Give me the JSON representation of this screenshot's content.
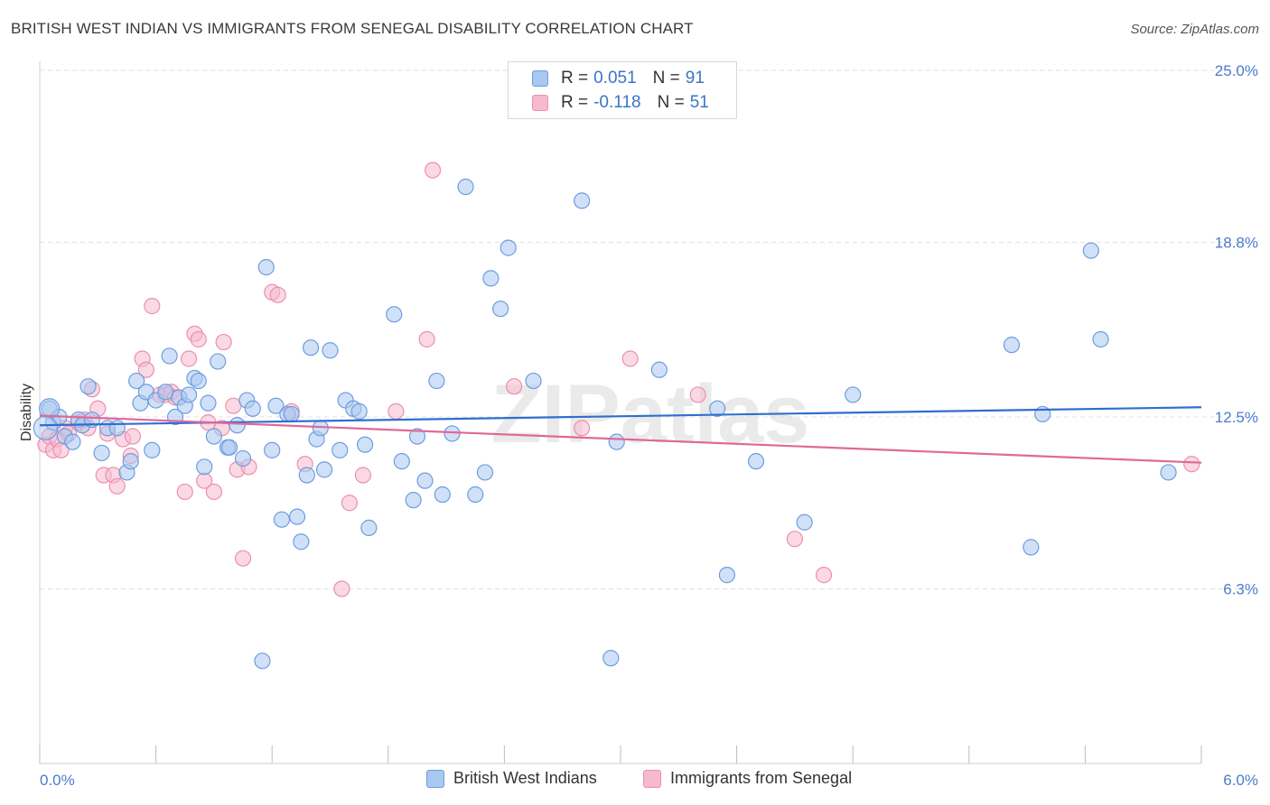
{
  "title": "BRITISH WEST INDIAN VS IMMIGRANTS FROM SENEGAL DISABILITY CORRELATION CHART",
  "source": "Source: ZipAtlas.com",
  "watermark": "ZIPatlas",
  "colors": {
    "blue_fill": "#a9c8f0",
    "blue_stroke": "#6d9de0",
    "blue_line": "#2f6fce",
    "pink_fill": "#f6b9cd",
    "pink_stroke": "#ec8fb0",
    "pink_line": "#e0689a",
    "tick_text": "#4a7cc9",
    "grid": "#e2e2e2"
  },
  "legend": {
    "rows": [
      {
        "r_label": "R = ",
        "r_value": "0.051",
        "n_label": "N = ",
        "n_value": "91"
      },
      {
        "r_label": "R = ",
        "r_value": "-0.118",
        "n_label": "N = ",
        "n_value": "51"
      }
    ]
  },
  "chart_data": {
    "type": "scatter",
    "title": "BRITISH WEST INDIAN VS IMMIGRANTS FROM SENEGAL DISABILITY CORRELATION CHART",
    "ylabel": "Disability",
    "xlabel": "",
    "xlim": [
      0.0,
      6.0
    ],
    "ylim": [
      0.0,
      25.0
    ],
    "x_tick_labels": [
      "0.0%",
      "6.0%"
    ],
    "y_ticks": [
      6.3,
      12.5,
      18.8,
      25.0
    ],
    "y_tick_labels": [
      "6.3%",
      "12.5%",
      "18.8%",
      "25.0%"
    ],
    "grid": true,
    "legend_position": "top-center",
    "series": [
      {
        "name": "British West Indians",
        "color": "#a9c8f0",
        "r": 0.051,
        "n": 91,
        "trend": [
          [
            0.0,
            12.2
          ],
          [
            6.0,
            12.85
          ]
        ],
        "points": [
          [
            0.05,
            12.8
          ],
          [
            0.07,
            12.3
          ],
          [
            0.1,
            12.5
          ],
          [
            0.13,
            11.8
          ],
          [
            0.17,
            11.6
          ],
          [
            0.2,
            12.4
          ],
          [
            0.22,
            12.2
          ],
          [
            0.25,
            13.6
          ],
          [
            0.27,
            12.4
          ],
          [
            0.32,
            11.2
          ],
          [
            0.35,
            12.1
          ],
          [
            0.4,
            12.1
          ],
          [
            0.45,
            10.5
          ],
          [
            0.47,
            10.9
          ],
          [
            0.5,
            13.8
          ],
          [
            0.52,
            13.0
          ],
          [
            0.55,
            13.4
          ],
          [
            0.58,
            11.3
          ],
          [
            0.6,
            13.1
          ],
          [
            0.65,
            13.4
          ],
          [
            0.67,
            14.7
          ],
          [
            0.7,
            12.5
          ],
          [
            0.72,
            13.2
          ],
          [
            0.75,
            12.9
          ],
          [
            0.77,
            13.3
          ],
          [
            0.8,
            13.9
          ],
          [
            0.82,
            13.8
          ],
          [
            0.85,
            10.7
          ],
          [
            0.87,
            13.0
          ],
          [
            0.9,
            11.8
          ],
          [
            0.92,
            14.5
          ],
          [
            0.97,
            11.4
          ],
          [
            0.98,
            11.4
          ],
          [
            1.02,
            12.2
          ],
          [
            1.05,
            11.0
          ],
          [
            1.07,
            13.1
          ],
          [
            1.1,
            12.8
          ],
          [
            1.15,
            3.7
          ],
          [
            1.17,
            17.9
          ],
          [
            1.2,
            11.3
          ],
          [
            1.22,
            12.9
          ],
          [
            1.25,
            8.8
          ],
          [
            1.28,
            12.6
          ],
          [
            1.3,
            12.6
          ],
          [
            1.33,
            8.9
          ],
          [
            1.35,
            8.0
          ],
          [
            1.38,
            10.4
          ],
          [
            1.4,
            15.0
          ],
          [
            1.43,
            11.7
          ],
          [
            1.45,
            12.1
          ],
          [
            1.47,
            10.6
          ],
          [
            1.5,
            14.9
          ],
          [
            1.55,
            11.3
          ],
          [
            1.58,
            13.1
          ],
          [
            1.62,
            12.8
          ],
          [
            1.65,
            12.7
          ],
          [
            1.68,
            11.5
          ],
          [
            1.7,
            8.5
          ],
          [
            1.83,
            16.2
          ],
          [
            1.87,
            10.9
          ],
          [
            1.93,
            9.5
          ],
          [
            1.95,
            11.8
          ],
          [
            1.99,
            10.2
          ],
          [
            2.05,
            13.8
          ],
          [
            2.08,
            9.7
          ],
          [
            2.13,
            11.9
          ],
          [
            2.2,
            20.8
          ],
          [
            2.25,
            9.7
          ],
          [
            2.3,
            10.5
          ],
          [
            2.33,
            17.5
          ],
          [
            2.38,
            16.4
          ],
          [
            2.42,
            18.6
          ],
          [
            2.55,
            13.8
          ],
          [
            2.8,
            20.3
          ],
          [
            2.95,
            3.8
          ],
          [
            2.98,
            11.6
          ],
          [
            3.2,
            14.2
          ],
          [
            3.5,
            12.8
          ],
          [
            3.55,
            6.8
          ],
          [
            3.7,
            10.9
          ],
          [
            3.95,
            8.7
          ],
          [
            4.2,
            13.3
          ],
          [
            5.02,
            15.1
          ],
          [
            5.12,
            7.8
          ],
          [
            5.18,
            12.6
          ],
          [
            5.43,
            18.5
          ],
          [
            5.48,
            15.3
          ],
          [
            5.83,
            10.5
          ]
        ]
      },
      {
        "name": "Immigrants from Senegal",
        "color": "#f6b9cd",
        "r": -0.118,
        "n": 51,
        "trend": [
          [
            0.0,
            12.55
          ],
          [
            6.0,
            10.85
          ]
        ],
        "points": [
          [
            0.03,
            11.5
          ],
          [
            0.05,
            11.8
          ],
          [
            0.07,
            11.3
          ],
          [
            0.09,
            11.7
          ],
          [
            0.11,
            11.3
          ],
          [
            0.13,
            12.1
          ],
          [
            0.15,
            11.9
          ],
          [
            0.2,
            12.3
          ],
          [
            0.23,
            12.4
          ],
          [
            0.25,
            12.1
          ],
          [
            0.27,
            13.5
          ],
          [
            0.3,
            12.8
          ],
          [
            0.33,
            10.4
          ],
          [
            0.35,
            11.9
          ],
          [
            0.38,
            10.4
          ],
          [
            0.4,
            10.0
          ],
          [
            0.43,
            11.7
          ],
          [
            0.47,
            11.1
          ],
          [
            0.48,
            11.8
          ],
          [
            0.53,
            14.6
          ],
          [
            0.55,
            14.2
          ],
          [
            0.58,
            16.5
          ],
          [
            0.62,
            13.3
          ],
          [
            0.65,
            13.3
          ],
          [
            0.68,
            13.4
          ],
          [
            0.7,
            13.2
          ],
          [
            0.75,
            9.8
          ],
          [
            0.77,
            14.6
          ],
          [
            0.8,
            15.5
          ],
          [
            0.82,
            15.3
          ],
          [
            0.85,
            10.2
          ],
          [
            0.87,
            12.3
          ],
          [
            0.9,
            9.8
          ],
          [
            0.94,
            12.1
          ],
          [
            0.95,
            15.2
          ],
          [
            1.0,
            12.9
          ],
          [
            1.02,
            10.6
          ],
          [
            1.05,
            7.4
          ],
          [
            1.08,
            10.7
          ],
          [
            1.2,
            17.0
          ],
          [
            1.23,
            16.9
          ],
          [
            1.3,
            12.7
          ],
          [
            1.37,
            10.8
          ],
          [
            1.56,
            6.3
          ],
          [
            1.6,
            9.4
          ],
          [
            1.67,
            10.4
          ],
          [
            1.84,
            12.7
          ],
          [
            2.0,
            15.3
          ],
          [
            2.03,
            21.4
          ],
          [
            2.45,
            13.6
          ],
          [
            2.8,
            12.1
          ],
          [
            3.05,
            14.6
          ],
          [
            3.4,
            13.3
          ],
          [
            3.9,
            8.1
          ],
          [
            4.05,
            6.8
          ],
          [
            5.95,
            10.8
          ]
        ]
      }
    ]
  }
}
